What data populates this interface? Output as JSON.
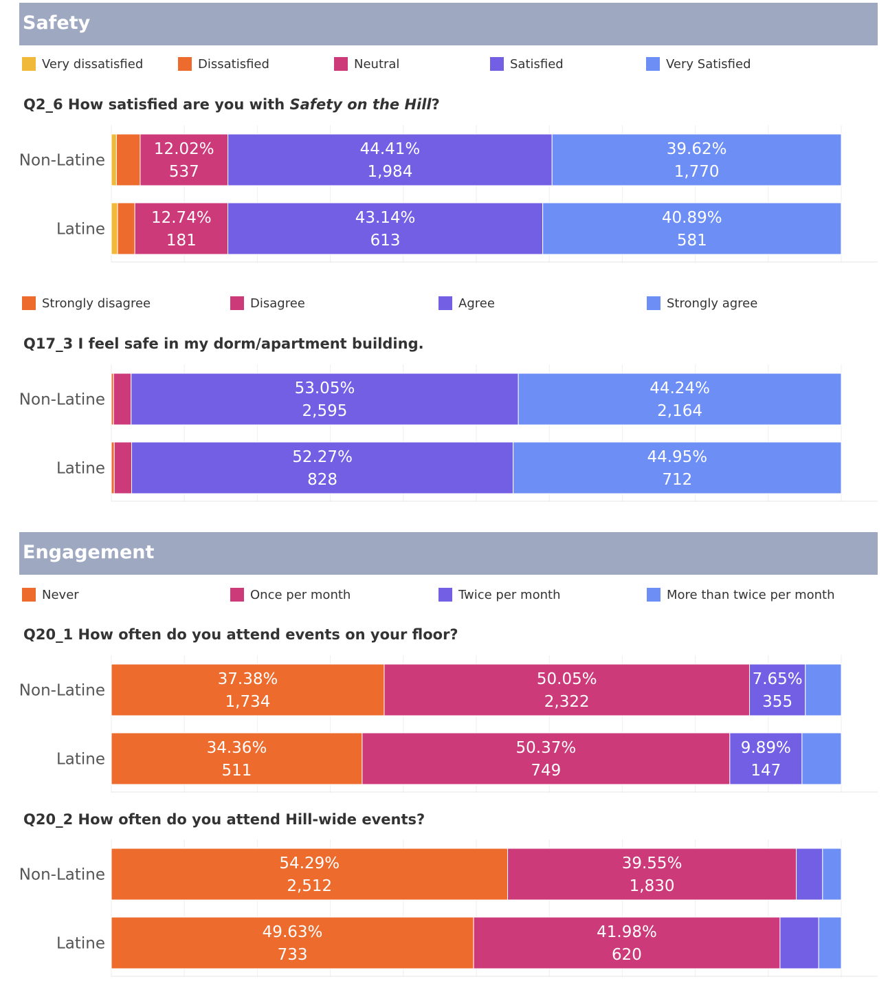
{
  "colors": {
    "header_bg": "#9ea8c0",
    "very_dissatisfied": "#f0b93a",
    "orange": "#ec6b2d",
    "pink": "#cc3a79",
    "purple": "#735fe4",
    "blue": "#6d8ef5"
  },
  "sections": {
    "safety": {
      "title": "Safety"
    },
    "engagement": {
      "title": "Engagement"
    }
  },
  "legends": {
    "satisfaction": [
      {
        "label": "Very dissatisfied",
        "color": "#f0b93a"
      },
      {
        "label": "Dissatisfied",
        "color": "#ec6b2d"
      },
      {
        "label": "Neutral",
        "color": "#cc3a79"
      },
      {
        "label": "Satisfied",
        "color": "#735fe4"
      },
      {
        "label": "Very Satisfied",
        "color": "#6d8ef5"
      }
    ],
    "agreement": [
      {
        "label": "Strongly disagree",
        "color": "#ec6b2d"
      },
      {
        "label": "Disagree",
        "color": "#cc3a79"
      },
      {
        "label": "Agree",
        "color": "#735fe4"
      },
      {
        "label": "Strongly agree",
        "color": "#6d8ef5"
      }
    ],
    "frequency": [
      {
        "label": "Never",
        "color": "#ec6b2d"
      },
      {
        "label": "Once per month",
        "color": "#cc3a79"
      },
      {
        "label": "Twice per month",
        "color": "#735fe4"
      },
      {
        "label": "More than twice per month",
        "color": "#6d8ef5"
      }
    ]
  },
  "questions": {
    "q2_6": {
      "prefix": "Q2_6 How satisfied are you with ",
      "italic": "Safety on the Hill",
      "suffix": "?"
    },
    "q17_3": {
      "text": "Q17_3 I feel safe in my dorm/apartment building."
    },
    "q20_1": {
      "text": "Q20_1 How often do you attend events on your floor?"
    },
    "q20_2": {
      "text": "Q20_2 How often do you attend Hill-wide events?"
    }
  },
  "chart_data": [
    {
      "type": "bar",
      "orientation": "horizontal",
      "stacked": true,
      "normalized": true,
      "title": "Q2_6 How satisfied are you with Safety on the Hill?",
      "categories": [
        "Non-Latine",
        "Latine"
      ],
      "xlim": [
        0,
        100
      ],
      "series": [
        {
          "name": "Very dissatisfied",
          "color": "#f0b93a",
          "values": [
            0.7,
            0.85
          ],
          "labels": [
            "",
            ""
          ]
        },
        {
          "name": "Dissatisfied",
          "color": "#ec6b2d",
          "values": [
            3.25,
            2.37
          ],
          "labels": [
            "",
            ""
          ]
        },
        {
          "name": "Neutral",
          "color": "#cc3a79",
          "values": [
            12.02,
            12.74
          ],
          "labels": [
            [
              "12.02%",
              "537"
            ],
            [
              "12.74%",
              "181"
            ]
          ]
        },
        {
          "name": "Satisfied",
          "color": "#735fe4",
          "values": [
            44.41,
            43.14
          ],
          "labels": [
            [
              "44.41%",
              "1,984"
            ],
            [
              "43.14%",
              "613"
            ]
          ]
        },
        {
          "name": "Very Satisfied",
          "color": "#6d8ef5",
          "values": [
            39.62,
            40.89
          ],
          "labels": [
            [
              "39.62%",
              "1,770"
            ],
            [
              "40.89%",
              "581"
            ]
          ]
        }
      ]
    },
    {
      "type": "bar",
      "orientation": "horizontal",
      "stacked": true,
      "normalized": true,
      "title": "Q17_3 I feel safe in my dorm/apartment building.",
      "categories": [
        "Non-Latine",
        "Latine"
      ],
      "xlim": [
        0,
        100
      ],
      "series": [
        {
          "name": "Strongly disagree",
          "color": "#ec6b2d",
          "values": [
            0.3,
            0.4
          ],
          "labels": [
            "",
            ""
          ]
        },
        {
          "name": "Disagree",
          "color": "#cc3a79",
          "values": [
            2.41,
            2.38
          ],
          "labels": [
            "",
            ""
          ]
        },
        {
          "name": "Agree",
          "color": "#735fe4",
          "values": [
            53.05,
            52.27
          ],
          "labels": [
            [
              "53.05%",
              "2,595"
            ],
            [
              "52.27%",
              "828"
            ]
          ]
        },
        {
          "name": "Strongly agree",
          "color": "#6d8ef5",
          "values": [
            44.24,
            44.95
          ],
          "labels": [
            [
              "44.24%",
              "2,164"
            ],
            [
              "44.95%",
              "712"
            ]
          ]
        }
      ]
    },
    {
      "type": "bar",
      "orientation": "horizontal",
      "stacked": true,
      "normalized": true,
      "title": "Q20_1 How often do you attend events on your floor?",
      "categories": [
        "Non-Latine",
        "Latine"
      ],
      "xlim": [
        0,
        100
      ],
      "series": [
        {
          "name": "Never",
          "color": "#ec6b2d",
          "values": [
            37.38,
            34.36
          ],
          "labels": [
            [
              "37.38%",
              "1,734"
            ],
            [
              "34.36%",
              "511"
            ]
          ]
        },
        {
          "name": "Once per month",
          "color": "#cc3a79",
          "values": [
            50.05,
            50.37
          ],
          "labels": [
            [
              "50.05%",
              "2,322"
            ],
            [
              "50.37%",
              "749"
            ]
          ]
        },
        {
          "name": "Twice per month",
          "color": "#735fe4",
          "values": [
            7.65,
            9.89
          ],
          "labels": [
            [
              "7.65%",
              "355"
            ],
            [
              "9.89%",
              "147"
            ]
          ]
        },
        {
          "name": "More than twice per month",
          "color": "#6d8ef5",
          "values": [
            4.92,
            5.38
          ],
          "labels": [
            "",
            ""
          ]
        }
      ]
    },
    {
      "type": "bar",
      "orientation": "horizontal",
      "stacked": true,
      "normalized": true,
      "title": "Q20_2 How often do you attend Hill-wide events?",
      "categories": [
        "Non-Latine",
        "Latine"
      ],
      "xlim": [
        0,
        100
      ],
      "series": [
        {
          "name": "Never",
          "color": "#ec6b2d",
          "values": [
            54.29,
            49.63
          ],
          "labels": [
            [
              "54.29%",
              "2,512"
            ],
            [
              "49.63%",
              "733"
            ]
          ]
        },
        {
          "name": "Once per month",
          "color": "#cc3a79",
          "values": [
            39.55,
            41.98
          ],
          "labels": [
            [
              "39.55%",
              "1,830"
            ],
            [
              "41.98%",
              "620"
            ]
          ]
        },
        {
          "name": "Twice per month",
          "color": "#735fe4",
          "values": [
            3.6,
            5.3
          ],
          "labels": [
            "",
            ""
          ]
        },
        {
          "name": "More than twice per month",
          "color": "#6d8ef5",
          "values": [
            2.56,
            3.09
          ],
          "labels": [
            "",
            ""
          ]
        }
      ]
    }
  ]
}
